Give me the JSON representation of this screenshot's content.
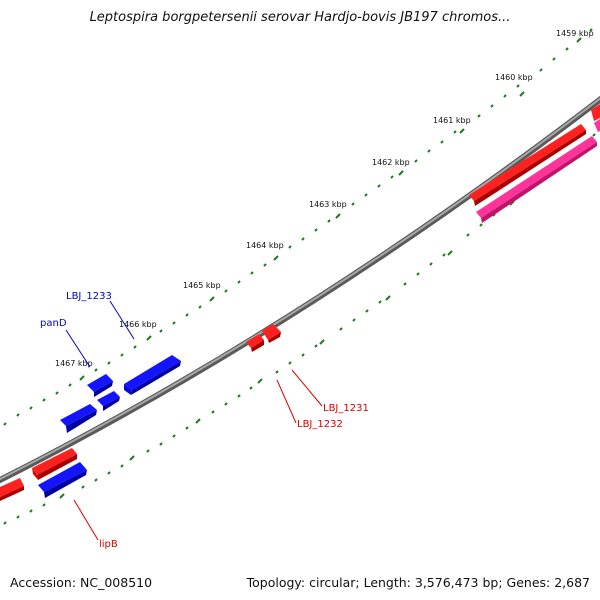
{
  "title": "Leptospira borgpetersenii serovar Hardjo-bovis JB197 chromos...",
  "footer": {
    "accession": "Accession: NC_008510",
    "stats": "Topology: circular; Length: 3,576,473 bp; Genes: 2,687"
  },
  "scale_labels": [
    "1459 kbp",
    "1460 kbp",
    "1461 kbp",
    "1462 kbp",
    "1463 kbp",
    "1464 kbp",
    "1465 kbp",
    "1466 kbp",
    "1467 kbp"
  ],
  "gene_labels": [
    "LBJ_1233",
    "panD",
    "LBJ_1231",
    "LBJ_1232",
    "lipB"
  ],
  "colors": {
    "forward_gene": "#ff0000",
    "reverse_gene": "#0000ee",
    "rna_gene": "#ff3399",
    "backbone": "#7a7a7a",
    "ticks": "#1e7a1e"
  }
}
